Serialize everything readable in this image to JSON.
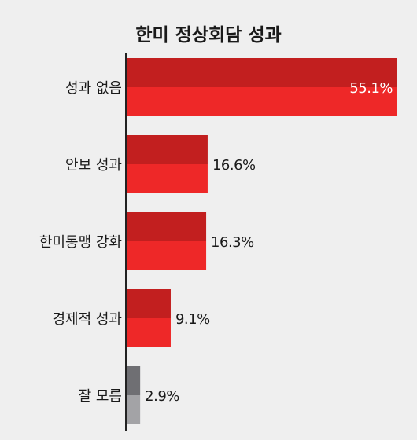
{
  "chart_data": {
    "type": "bar",
    "orientation": "horizontal",
    "title": "한미 정상회담 성과",
    "categories": [
      "성과 없음",
      "안보 성과",
      "한미동맹 강화",
      "경제적 성과",
      "잘 모름"
    ],
    "values": [
      55.1,
      16.6,
      16.3,
      9.1,
      2.9
    ],
    "value_labels": [
      "55.1%",
      "16.6%",
      "16.3%",
      "9.1%",
      "2.9%"
    ],
    "unit": "%",
    "xlim": [
      0,
      55.1
    ],
    "grid": false,
    "legend": "none",
    "colors": {
      "bar_top": "#c21f1f",
      "bar_bottom": "#ee2828",
      "gray_top": "#6f6f73",
      "gray_bottom": "#a3a3a6",
      "axis": "#222222"
    },
    "gray_categories": [
      "잘 모름"
    ]
  }
}
